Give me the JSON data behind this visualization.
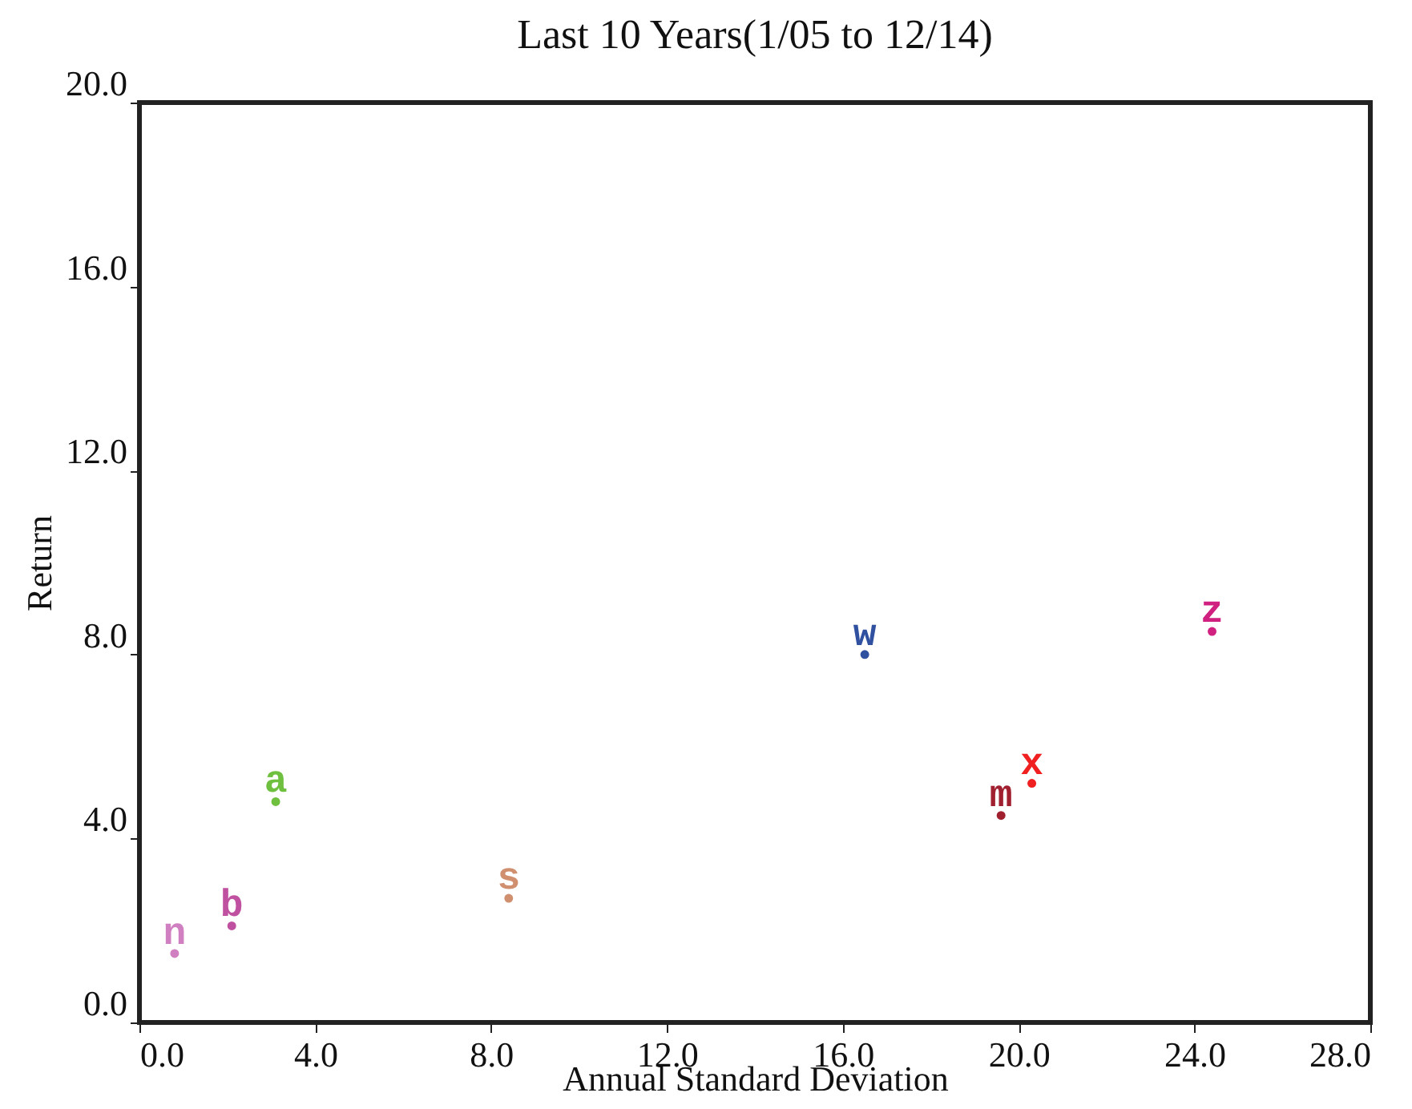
{
  "chart_data": {
    "type": "scatter",
    "title": "Last 10 Years(1/05 to 12/14)",
    "xlabel": "Annual Standard Deviation",
    "ylabel": "Return",
    "xlim": [
      0,
      28
    ],
    "ylim": [
      0,
      20
    ],
    "xticks": [
      {
        "value": 0,
        "label": "0.0"
      },
      {
        "value": 4,
        "label": "4.0"
      },
      {
        "value": 8,
        "label": "8.0"
      },
      {
        "value": 12,
        "label": "12.0"
      },
      {
        "value": 16,
        "label": "16.0"
      },
      {
        "value": 20,
        "label": "20.0"
      },
      {
        "value": 24,
        "label": "24.0"
      },
      {
        "value": 28,
        "label": "28.0"
      }
    ],
    "yticks": [
      {
        "value": 0,
        "label": "0.0"
      },
      {
        "value": 4,
        "label": "4.0"
      },
      {
        "value": 8,
        "label": "8.0"
      },
      {
        "value": 12,
        "label": "12.0"
      },
      {
        "value": 16,
        "label": "16.0"
      },
      {
        "value": 20,
        "label": "20.0"
      }
    ],
    "grid": false,
    "legend": false,
    "series": [
      {
        "name": "n",
        "color": "#d080c0",
        "x": [
          0.8
        ],
        "values": [
          1.5
        ]
      },
      {
        "name": "b",
        "color": "#c050a0",
        "x": [
          2.1
        ],
        "values": [
          2.1
        ]
      },
      {
        "name": "a",
        "color": "#70c040",
        "x": [
          3.1
        ],
        "values": [
          4.8
        ]
      },
      {
        "name": "s",
        "color": "#d09070",
        "x": [
          8.4
        ],
        "values": [
          2.7
        ]
      },
      {
        "name": "w",
        "color": "#3050a0",
        "x": [
          16.5
        ],
        "values": [
          8.0
        ]
      },
      {
        "name": "m",
        "color": "#a02030",
        "x": [
          19.6
        ],
        "values": [
          4.5
        ]
      },
      {
        "name": "x",
        "color": "#f02020",
        "x": [
          20.3
        ],
        "values": [
          5.2
        ]
      },
      {
        "name": "z",
        "color": "#d02080",
        "x": [
          24.4
        ],
        "values": [
          8.5
        ]
      }
    ]
  }
}
